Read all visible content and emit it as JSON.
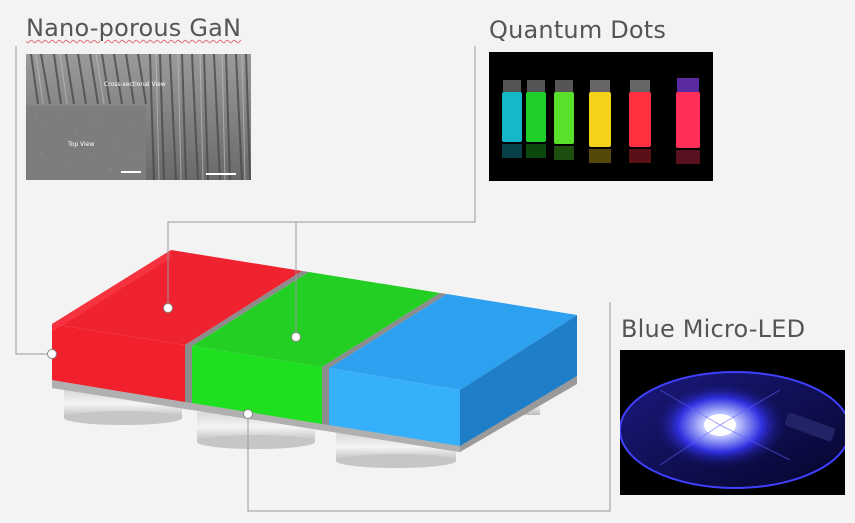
{
  "labels": {
    "nano_gan": "Nano-porous GaN",
    "quantum_dots": "Quantum Dots",
    "blue_micro_led": "Blue Micro-LED"
  },
  "sem_image": {
    "cross_section_caption": "Cross-sectional View",
    "top_view_caption": "Top View"
  },
  "colors": {
    "red": "#e8212f",
    "green": "#1ed01e",
    "blue": "#2ea8f6",
    "connector": "#999999"
  }
}
